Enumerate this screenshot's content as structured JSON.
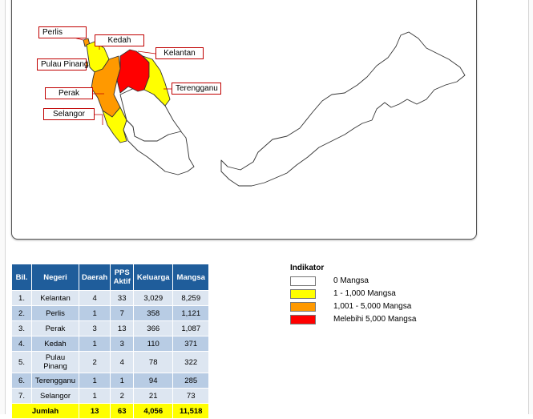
{
  "map": {
    "callouts": {
      "perlis": "Perlis",
      "kedah": "Kedah",
      "kelantan": "Kelantan",
      "pulau_pinang": "Pulau Pinang",
      "perak": "Perak",
      "terengganu": "Terengganu",
      "selangor": "Selangor"
    },
    "colors": {
      "none": "#ffffff",
      "low": "#ffff00",
      "mid": "#ff9900",
      "high": "#ff0000",
      "callout_border": "#c00000"
    }
  },
  "table": {
    "headers": [
      "Bil.",
      "Negeri",
      "Daerah",
      "PPS Aktif",
      "Keluarga",
      "Mangsa"
    ],
    "rows": [
      {
        "bil": "1.",
        "negeri": "Kelantan",
        "daerah": "4",
        "pps": "33",
        "keluarga": "3,029",
        "mangsa": "8,259"
      },
      {
        "bil": "2.",
        "negeri": "Perlis",
        "daerah": "1",
        "pps": "7",
        "keluarga": "358",
        "mangsa": "1,121"
      },
      {
        "bil": "3.",
        "negeri": "Perak",
        "daerah": "3",
        "pps": "13",
        "keluarga": "366",
        "mangsa": "1,087"
      },
      {
        "bil": "4.",
        "negeri": "Kedah",
        "daerah": "1",
        "pps": "3",
        "keluarga": "110",
        "mangsa": "371"
      },
      {
        "bil": "5.",
        "negeri": "Pulau Pinang",
        "daerah": "2",
        "pps": "4",
        "keluarga": "78",
        "mangsa": "322"
      },
      {
        "bil": "6.",
        "negeri": "Terengganu",
        "daerah": "1",
        "pps": "1",
        "keluarga": "94",
        "mangsa": "285"
      },
      {
        "bil": "7.",
        "negeri": "Selangor",
        "daerah": "1",
        "pps": "2",
        "keluarga": "21",
        "mangsa": "73"
      }
    ],
    "total": {
      "label": "Jumlah",
      "daerah": "13",
      "pps": "63",
      "keluarga": "4,056",
      "mangsa": "11,518"
    },
    "colors": {
      "header": "#1f5d9b",
      "row_light": "#dde6f1",
      "row_dark": "#b8cce4",
      "total": "#ffff00"
    }
  },
  "legend": {
    "title": "Indikator",
    "items": [
      {
        "label": "0 Mangsa",
        "color": "#ffffff"
      },
      {
        "label": "1 - 1,000 Mangsa",
        "color": "#ffff00"
      },
      {
        "label": "1,001 - 5,000 Mangsa",
        "color": "#ff9900"
      },
      {
        "label": "Melebihi 5,000 Mangsa",
        "color": "#ff0000"
      }
    ]
  }
}
